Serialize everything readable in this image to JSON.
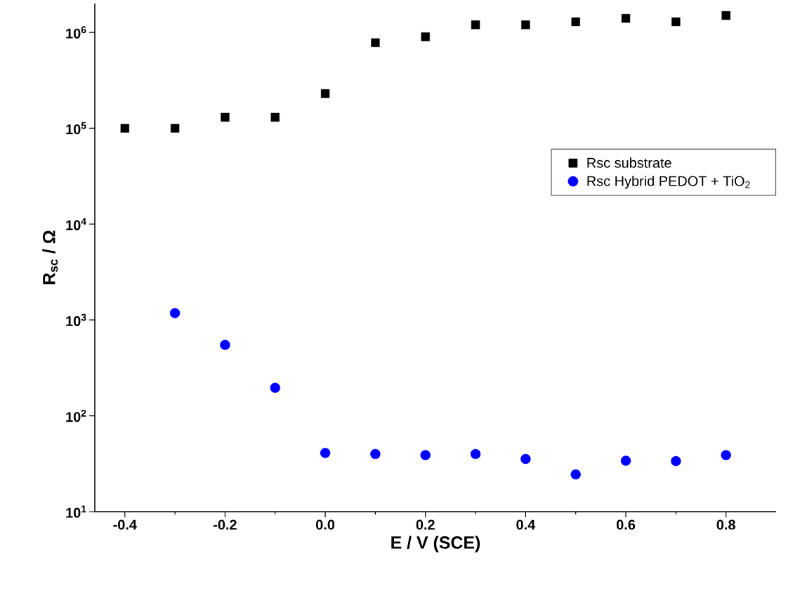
{
  "chart_data": {
    "type": "scatter",
    "xlabel": "E / V (SCE)",
    "ylabel": "R$_{sc}$ / Ω",
    "log": "y",
    "grid": false,
    "legend": "right",
    "xlim": [
      -0.46,
      0.9
    ],
    "ylim": [
      10,
      2000000
    ],
    "xticks": [
      {
        "value": -0.4,
        "label": "-0.4"
      },
      {
        "value": -0.2,
        "label": "-0.2"
      },
      {
        "value": 0,
        "label": "0.0"
      },
      {
        "value": 0.2,
        "label": "0.2"
      },
      {
        "value": 0.4,
        "label": "0.4"
      },
      {
        "value": 0.6,
        "label": "0.6"
      },
      {
        "value": 0.8,
        "label": "0.8"
      }
    ],
    "yticks": [
      {
        "value": 10,
        "label": "10$^{1}$"
      },
      {
        "value": 100,
        "label": "10$^{2}$"
      },
      {
        "value": 1000,
        "label": "10$^{3}$"
      },
      {
        "value": 10000,
        "label": "10$^{4}$"
      },
      {
        "value": 100000,
        "label": "10$^{5}$"
      },
      {
        "value": 1000000,
        "label": "10$^{6}$"
      }
    ],
    "x": [
      -0.4,
      -0.3,
      -0.2,
      -0.1,
      0.0,
      0.1,
      0.2,
      0.3,
      0.4,
      0.5,
      0.6,
      0.7,
      0.8
    ],
    "series": [
      {
        "name": "Rsc substrate",
        "color": "#000000",
        "marker": "square",
        "values": [
          100000,
          100000,
          130000,
          130000,
          230000,
          780000,
          900000,
          1200000,
          1200000,
          1290000,
          1400000,
          1290000,
          1500000
        ]
      },
      {
        "name": "Rsc Hybrid PEDOT + TiO$_{2}$",
        "color": "#0000ff",
        "marker": "circle",
        "values": [
          null,
          1180,
          550,
          196,
          41,
          40,
          39,
          40,
          35.5,
          24.5,
          34,
          33.7,
          39
        ]
      }
    ]
  }
}
